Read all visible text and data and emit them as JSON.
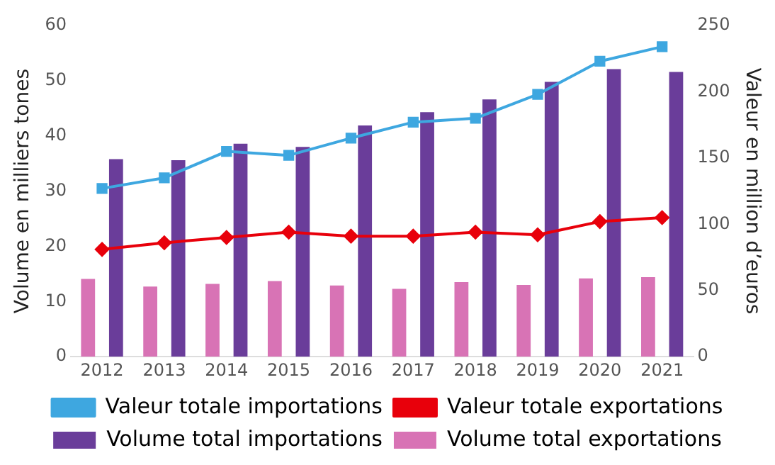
{
  "chart_data": {
    "type": "bar",
    "categories": [
      "2012",
      "2013",
      "2014",
      "2015",
      "2016",
      "2017",
      "2018",
      "2019",
      "2020",
      "2021"
    ],
    "ylabel": "Volume en milliers tones",
    "y2label": "Valeur en million d’euros",
    "ylim": [
      0,
      60
    ],
    "yticks": [
      0,
      10,
      20,
      30,
      40,
      50,
      60
    ],
    "y2lim": [
      0,
      250
    ],
    "y2ticks": [
      0,
      50,
      100,
      150,
      200,
      250
    ],
    "grid": false,
    "legend": "bottom",
    "series": [
      {
        "name": "Valeur totale importations",
        "type": "line",
        "axis": "y2",
        "marker": "square",
        "color": "#3ea7e0",
        "values": [
          127,
          135,
          155,
          152,
          165,
          177,
          180,
          198,
          223,
          234
        ]
      },
      {
        "name": "Valeur totale exportations",
        "type": "line",
        "axis": "y2",
        "marker": "diamond",
        "color": "#e8000b",
        "values": [
          81,
          86,
          90,
          94,
          91,
          91,
          94,
          92,
          102,
          105
        ]
      },
      {
        "name": "Volume total importations",
        "color": "#6a3d9a",
        "values": [
          35.8,
          35.6,
          38.6,
          38.0,
          41.9,
          44.3,
          46.6,
          49.8,
          52.1,
          51.6
        ]
      },
      {
        "name": "Volume total exportations",
        "color": "#d873b5",
        "values": [
          14.1,
          12.7,
          13.2,
          13.7,
          12.9,
          12.3,
          13.5,
          13.0,
          14.2,
          14.4
        ]
      }
    ]
  }
}
